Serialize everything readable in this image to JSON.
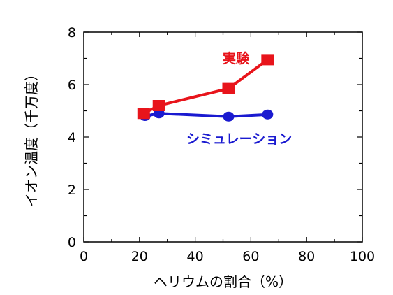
{
  "chart_data": {
    "type": "line",
    "xlabel": "ヘリウムの割合（%）",
    "ylabel": "イオン温度（千万度）",
    "xlim": [
      0,
      100
    ],
    "ylim": [
      0,
      8
    ],
    "xticks": [
      "0",
      "20",
      "40",
      "60",
      "80",
      "100"
    ],
    "yticks": [
      "0",
      "2",
      "4",
      "6",
      "8"
    ],
    "grid": false,
    "series": [
      {
        "name": "実験",
        "color": "#e8141b",
        "marker": "square",
        "x": [
          21.5,
          27,
          52,
          66
        ],
        "y": [
          4.9,
          5.2,
          5.85,
          6.95
        ]
      },
      {
        "name": "シミュレーション",
        "color": "#1a1ad0",
        "marker": "circle",
        "x": [
          22,
          27,
          52,
          66
        ],
        "y": [
          4.8,
          4.9,
          4.78,
          4.86
        ]
      }
    ]
  }
}
